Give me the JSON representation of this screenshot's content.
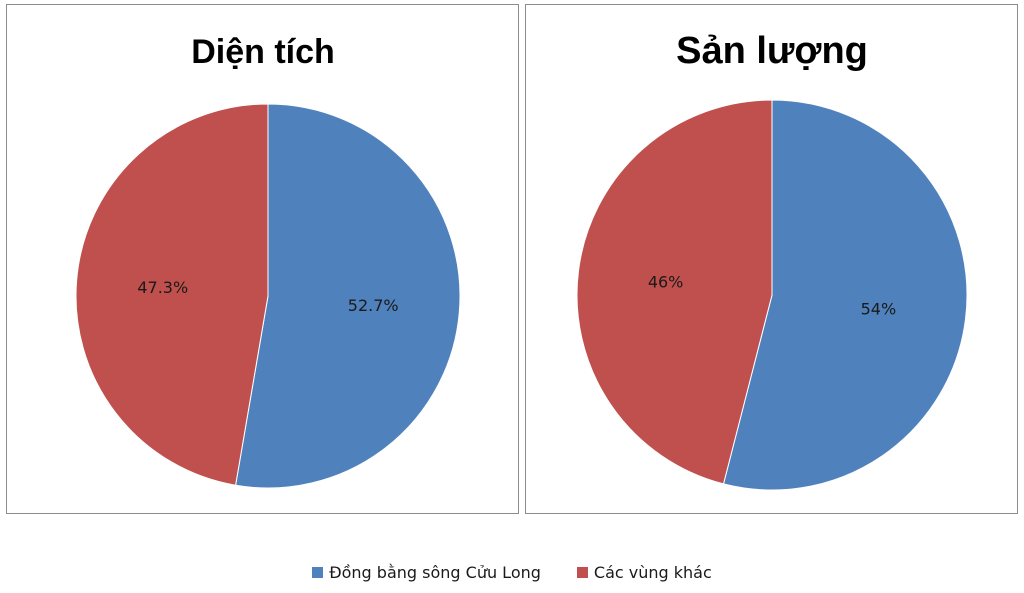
{
  "chart_data": [
    {
      "type": "pie",
      "title": "Diện tích",
      "categories": [
        "Đồng bằng sông Cửu Long",
        "Các vùng khác"
      ],
      "values": [
        52.7,
        47.3
      ],
      "labels": [
        "52.7%",
        "47.3%"
      ],
      "colors": [
        "#4f81bd",
        "#c0504d"
      ]
    },
    {
      "type": "pie",
      "title": "Sản lượng",
      "categories": [
        "Đồng bằng sông Cửu Long",
        "Các vùng khác"
      ],
      "values": [
        54,
        46
      ],
      "labels": [
        "54%",
        "46%"
      ],
      "colors": [
        "#4f81bd",
        "#c0504d"
      ]
    }
  ],
  "legend": {
    "placement": "bottom",
    "items": [
      {
        "label": "Đồng bằng sông Cửu Long",
        "color": "#4f81bd"
      },
      {
        "label": "Các vùng khác",
        "color": "#c0504d"
      }
    ]
  }
}
